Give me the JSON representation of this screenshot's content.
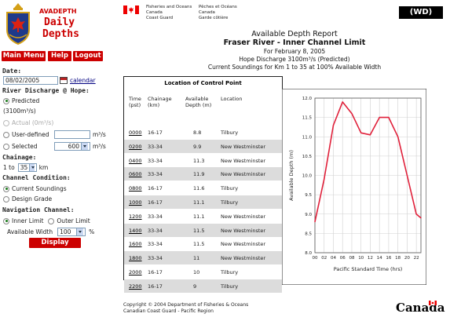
{
  "app": {
    "line1": "AVADEPTH",
    "line2": "Daily",
    "line3": "Depths"
  },
  "nav": {
    "main_menu": "Main Menu",
    "help": "Help",
    "logout": "Logout"
  },
  "form": {
    "date_label": "Date:",
    "date_value": "08/02/2005",
    "calendar_link": "calendar",
    "discharge_label": "River Discharge @ Hope:",
    "predicted_label": "Predicted",
    "predicted_value": "(3100m³/s)",
    "actual_label": "Actual (0m³/s)",
    "user_defined_label": "User-defined",
    "unit_m3s": "m³/s",
    "selected_label": "Selected",
    "selected_value": "600",
    "chainage_label": "Chainage:",
    "chainage_from": "1 to",
    "chainage_to": "35",
    "km": "km",
    "channel_condition_label": "Channel Condition:",
    "current_soundings": "Current Soundings",
    "design_grade": "Design Grade",
    "nav_channel_label": "Navigation Channel:",
    "inner_limit": "Inner Limit",
    "outer_limit": "Outer Limit",
    "available_width_label": "Available Width",
    "available_width_value": "100",
    "percent": "%",
    "display_button": "Display"
  },
  "gov": {
    "en1": "Fisheries and Oceans",
    "en2": "Canada",
    "en3": "Coast Guard",
    "fr1": "Pêches et Océans",
    "fr2": "Canada",
    "fr3": "Garde côtière",
    "badge": "(WD)"
  },
  "report": {
    "title": "Available Depth Report",
    "subtitle": "Fraser River - Inner Channel Limit",
    "date": "For February 8, 2005",
    "discharge": "Hope Discharge 3100m³/s (Predicted)",
    "soundings": "Current Soundings for Km 1 to 35 at 100% Available Width"
  },
  "table": {
    "title": "Location of Control Point",
    "headers": {
      "time": "Time\n(pst)",
      "chainage": "Chainage\n(km)",
      "depth": "Available\nDepth (m)",
      "location": "Location"
    },
    "rows": [
      {
        "time": "0000",
        "chainage": "16-17",
        "depth": "8.8",
        "location": "Tilbury"
      },
      {
        "time": "0200",
        "chainage": "33-34",
        "depth": "9.9",
        "location": "New Westminster"
      },
      {
        "time": "0400",
        "chainage": "33-34",
        "depth": "11.3",
        "location": "New Westminster"
      },
      {
        "time": "0600",
        "chainage": "33-34",
        "depth": "11.9",
        "location": "New Westminster"
      },
      {
        "time": "0800",
        "chainage": "16-17",
        "depth": "11.6",
        "location": "Tilbury"
      },
      {
        "time": "1000",
        "chainage": "16-17",
        "depth": "11.1",
        "location": "Tilbury"
      },
      {
        "time": "1200",
        "chainage": "33-34",
        "depth": "11.1",
        "location": "New Westminster"
      },
      {
        "time": "1400",
        "chainage": "33-34",
        "depth": "11.5",
        "location": "New Westminster"
      },
      {
        "time": "1600",
        "chainage": "33-34",
        "depth": "11.5",
        "location": "New Westminster"
      },
      {
        "time": "1800",
        "chainage": "33-34",
        "depth": "11",
        "location": "New Westminster"
      },
      {
        "time": "2000",
        "chainage": "16-17",
        "depth": "10",
        "location": "Tilbury"
      },
      {
        "time": "2200",
        "chainage": "16-17",
        "depth": "9",
        "location": "Tilbury"
      }
    ]
  },
  "chart_data": {
    "type": "line",
    "xlabel": "Pacific Standard Time (hrs)",
    "ylabel": "Available Depth (m)",
    "x_ticks": [
      "00",
      "02",
      "04",
      "06",
      "08",
      "10",
      "12",
      "14",
      "16",
      "18",
      "20",
      "22"
    ],
    "y_ticks": [
      "8.0",
      "8.5",
      "9.0",
      "9.5",
      "10.0",
      "10.5",
      "11.0",
      "11.5",
      "12.0"
    ],
    "xlim": [
      0,
      23
    ],
    "ylim": [
      8.0,
      12.0
    ],
    "grid": true,
    "line_color": "#e0203a",
    "series": [
      {
        "x": [
          0,
          2,
          4,
          6,
          8,
          10,
          12,
          14,
          16,
          18,
          20,
          22,
          23
        ],
        "y": [
          8.8,
          9.9,
          11.3,
          11.9,
          11.6,
          11.1,
          11.05,
          11.5,
          11.5,
          11.0,
          10.0,
          9.0,
          8.9
        ]
      }
    ]
  },
  "footer": {
    "line1": "Copyright © 2004 Department of Fisheries & Oceans",
    "line2": "Canadian Coast Guard - Pacific Region",
    "wordmark": "Canada"
  }
}
